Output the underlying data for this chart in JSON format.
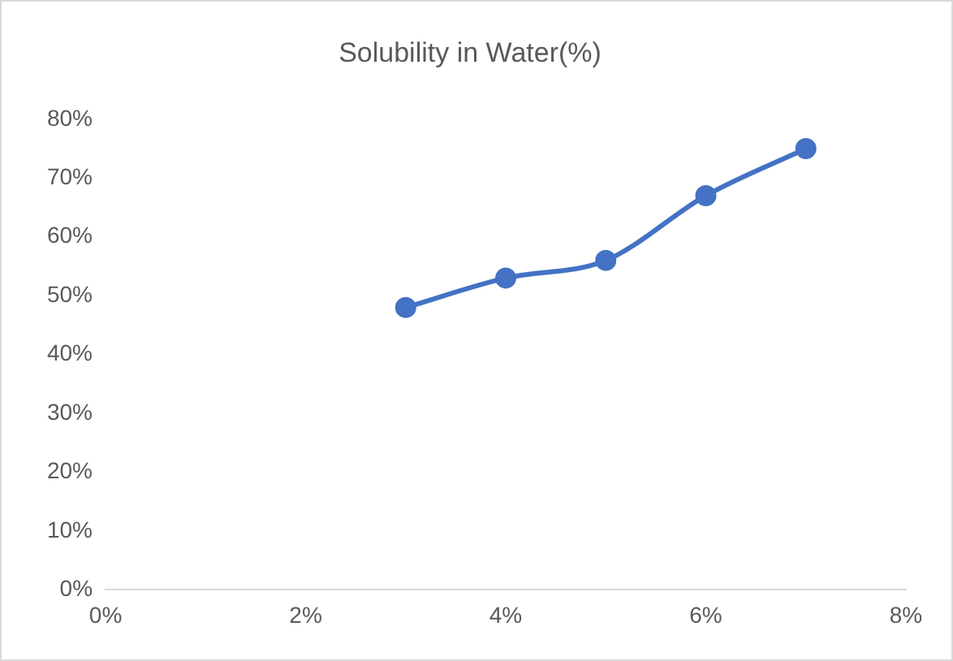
{
  "chart_data": {
    "type": "line",
    "title": "Solubility in Water(%)",
    "x": [
      3,
      4,
      5,
      6,
      7
    ],
    "series": [
      {
        "color": "#4472c4",
        "values": [
          48,
          53,
          56,
          67,
          75
        ]
      }
    ],
    "xlim": [
      0,
      8
    ],
    "xticks": [
      {
        "value": 0,
        "label": "0%"
      },
      {
        "value": 2,
        "label": "2%"
      },
      {
        "value": 4,
        "label": "4%"
      },
      {
        "value": 6,
        "label": "6%"
      },
      {
        "value": 8,
        "label": "8%"
      }
    ],
    "ylim": [
      0,
      80
    ],
    "yticks": [
      {
        "value": 0,
        "label": "0%"
      },
      {
        "value": 10,
        "label": "10%"
      },
      {
        "value": 20,
        "label": "20%"
      },
      {
        "value": 30,
        "label": "30%"
      },
      {
        "value": 40,
        "label": "40%"
      },
      {
        "value": 50,
        "label": "50%"
      },
      {
        "value": 60,
        "label": "60%"
      },
      {
        "value": 70,
        "label": "70%"
      },
      {
        "value": 80,
        "label": "80%"
      }
    ],
    "marker": "circle",
    "line_style": "solid"
  }
}
